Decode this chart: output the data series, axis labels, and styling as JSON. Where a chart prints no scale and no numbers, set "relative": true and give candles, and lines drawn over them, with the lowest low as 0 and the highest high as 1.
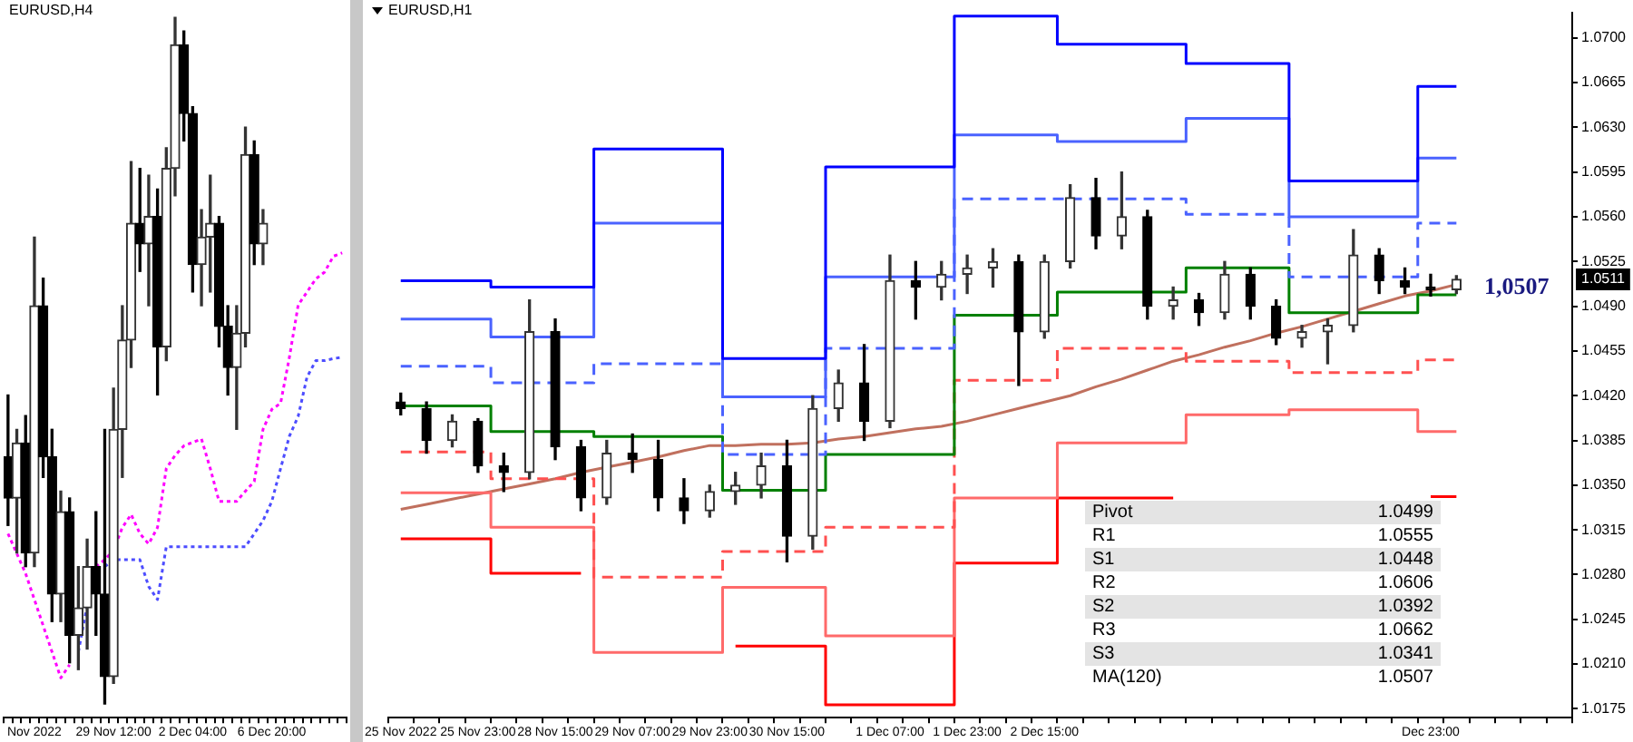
{
  "chart_data": [
    {
      "type": "candlestick",
      "title": "EURUSD,H4",
      "relative": true,
      "grid": false,
      "categories": [
        null,
        null,
        null,
        "Nov 2022",
        null,
        null,
        null,
        null,
        null,
        null,
        null,
        null,
        "29 Nov 12:00",
        null,
        null,
        null,
        null,
        null,
        null,
        null,
        null,
        "2 Dec 04:00",
        null,
        null,
        null,
        null,
        null,
        null,
        null,
        null,
        "6 Dec 20:00",
        null,
        null,
        null,
        null,
        null,
        null,
        null,
        null
      ],
      "ohlc": [
        [
          0.36,
          0.45,
          0.26,
          0.3
        ],
        [
          0.3,
          0.4,
          0.22,
          0.38
        ],
        [
          0.38,
          0.42,
          0.2,
          0.22
        ],
        [
          0.22,
          0.68,
          0.2,
          0.58
        ],
        [
          0.58,
          0.62,
          0.33,
          0.36
        ],
        [
          0.36,
          0.4,
          0.12,
          0.16
        ],
        [
          0.16,
          0.31,
          0.12,
          0.28
        ],
        [
          0.28,
          0.3,
          0.06,
          0.1
        ],
        [
          0.1,
          0.2,
          0.05,
          0.14
        ],
        [
          0.14,
          0.24,
          0.08,
          0.2
        ],
        [
          0.2,
          0.28,
          0.1,
          0.16
        ],
        [
          0.16,
          0.4,
          0.0,
          0.04
        ],
        [
          0.04,
          0.46,
          0.03,
          0.4
        ],
        [
          0.4,
          0.58,
          0.33,
          0.53
        ],
        [
          0.53,
          0.79,
          0.49,
          0.7
        ],
        [
          0.7,
          0.78,
          0.63,
          0.67
        ],
        [
          0.67,
          0.77,
          0.58,
          0.71
        ],
        [
          0.71,
          0.75,
          0.45,
          0.52
        ],
        [
          0.52,
          0.81,
          0.5,
          0.78
        ],
        [
          0.78,
          1.0,
          0.74,
          0.96
        ],
        [
          0.96,
          0.98,
          0.82,
          0.86
        ],
        [
          0.86,
          0.87,
          0.6,
          0.64
        ],
        [
          0.64,
          0.72,
          0.58,
          0.68
        ],
        [
          0.68,
          0.77,
          0.6,
          0.7
        ],
        [
          0.7,
          0.71,
          0.52,
          0.55
        ],
        [
          0.55,
          0.58,
          0.45,
          0.49
        ],
        [
          0.49,
          0.58,
          0.4,
          0.54
        ],
        [
          0.54,
          0.84,
          0.52,
          0.8
        ],
        [
          0.8,
          0.82,
          0.64,
          0.67
        ],
        [
          0.67,
          0.72,
          0.64,
          0.7
        ],
        null,
        null,
        null,
        null,
        null,
        null,
        null,
        null,
        null
      ],
      "series": [
        {
          "type": "line",
          "color": "#ff00ff",
          "line_style": "dotted",
          "values": [
            0.248,
            0.219,
            0.19,
            0.152,
            0.114,
            0.076,
            0.038,
            0.057,
            null,
            null,
            0.2,
            0.21,
            0.224,
            0.257,
            0.276,
            0.248,
            0.233,
            0.257,
            0.343,
            0.362,
            0.376,
            0.381,
            0.386,
            0.343,
            0.295,
            0.295,
            0.295,
            0.31,
            0.324,
            0.4,
            0.429,
            0.438,
            0.505,
            0.581,
            0.6,
            0.619,
            0.629,
            0.652,
            0.657
          ]
        },
        {
          "type": "line",
          "color": "#4d4dff",
          "line_style": "dotted",
          "values": [
            null,
            null,
            null,
            null,
            null,
            null,
            null,
            null,
            0.076,
            0.143,
            null,
            0.2,
            0.21,
            0.21,
            0.21,
            0.21,
            0.171,
            0.152,
            0.229,
            0.229,
            0.229,
            0.229,
            0.229,
            0.229,
            0.229,
            0.229,
            0.229,
            0.229,
            0.248,
            0.267,
            0.295,
            0.343,
            0.39,
            0.419,
            0.476,
            0.5,
            0.5,
            0.503,
            0.505
          ]
        }
      ]
    },
    {
      "type": "candlestick",
      "title": "EURUSD,H1",
      "grid": false,
      "categories": [
        "25 Nov 2022",
        null,
        null,
        "25 Nov 23:00",
        null,
        null,
        "28 Nov 15:00",
        null,
        null,
        "29 Nov 07:00",
        null,
        null,
        "29 Nov 23:00",
        null,
        null,
        "30 Nov 15:00",
        null,
        null,
        null,
        "1 Dec 07:00",
        null,
        null,
        "1 Dec 23:00",
        null,
        null,
        "2 Dec 15:00",
        null,
        null,
        null,
        null,
        null,
        null,
        null,
        null,
        null,
        null,
        null,
        null,
        null,
        null,
        "Dec 23:00",
        null,
        null,
        null,
        null,
        null
      ],
      "ohlc": [
        [
          1.0415,
          1.0422,
          1.0405,
          1.041
        ],
        [
          1.041,
          1.0415,
          1.0375,
          1.0385
        ],
        [
          1.0385,
          1.0405,
          1.038,
          1.04
        ],
        [
          1.04,
          1.0402,
          1.036,
          1.0365
        ],
        [
          1.0365,
          1.0375,
          1.0345,
          1.036
        ],
        [
          1.036,
          1.0495,
          1.0355,
          1.047
        ],
        [
          1.047,
          1.048,
          1.037,
          1.038
        ],
        [
          1.038,
          1.0385,
          1.033,
          1.034
        ],
        [
          1.034,
          1.0385,
          1.0335,
          1.0375
        ],
        [
          1.0375,
          1.039,
          1.036,
          1.037
        ],
        [
          1.037,
          1.0385,
          1.033,
          1.034
        ],
        [
          1.034,
          1.0355,
          1.032,
          1.033
        ],
        [
          1.033,
          1.035,
          1.0325,
          1.0345
        ],
        [
          1.0345,
          1.036,
          1.0335,
          1.035
        ],
        [
          1.035,
          1.0375,
          1.034,
          1.0365
        ],
        [
          1.0365,
          1.0385,
          1.029,
          1.031
        ],
        [
          1.031,
          1.042,
          1.03,
          1.041
        ],
        [
          1.041,
          1.044,
          1.04,
          1.043
        ],
        [
          1.043,
          1.046,
          1.0385,
          1.04
        ],
        [
          1.04,
          1.053,
          1.0395,
          1.051
        ],
        [
          1.051,
          1.0525,
          1.048,
          1.0505
        ],
        [
          1.0505,
          1.0525,
          1.0495,
          1.0515
        ],
        [
          1.0515,
          1.053,
          1.05,
          1.052
        ],
        [
          1.052,
          1.0535,
          1.0505,
          1.0525
        ],
        [
          1.0525,
          1.053,
          1.0428,
          1.047
        ],
        [
          1.047,
          1.053,
          1.0465,
          1.0525
        ],
        [
          1.0525,
          1.0585,
          1.052,
          1.0575
        ],
        [
          1.0575,
          1.059,
          1.0535,
          1.0545
        ],
        [
          1.0545,
          1.0595,
          1.0535,
          1.056
        ],
        [
          1.056,
          1.0565,
          1.048,
          1.049
        ],
        [
          1.049,
          1.0505,
          1.048,
          1.0495
        ],
        [
          1.0495,
          1.05,
          1.0475,
          1.0485
        ],
        [
          1.0485,
          1.0525,
          1.048,
          1.0515
        ],
        [
          1.0515,
          1.052,
          1.048,
          1.049
        ],
        [
          1.049,
          1.0495,
          1.046,
          1.0465
        ],
        [
          1.0465,
          1.0475,
          1.0458,
          1.047
        ],
        [
          1.047,
          1.048,
          1.0445,
          1.0475
        ],
        [
          1.0475,
          1.055,
          1.047,
          1.053
        ],
        [
          1.053,
          1.0535,
          1.05,
          1.051
        ],
        [
          1.051,
          1.052,
          1.05,
          1.0505
        ],
        [
          1.0505,
          1.0515,
          1.0498,
          1.0503
        ],
        [
          1.0503,
          1.0514,
          1.05,
          1.0511
        ],
        null,
        null,
        null,
        null
      ],
      "series": [
        {
          "type": "step",
          "color": "#0000ff",
          "values": [
            1.051,
            1.051,
            1.051,
            1.051,
            1.0505,
            1.0505,
            1.0505,
            1.0505,
            1.0613,
            1.0613,
            1.0613,
            1.0613,
            1.0613,
            1.0449,
            1.0449,
            1.0449,
            1.0449,
            1.0599,
            1.0599,
            1.0599,
            1.0599,
            1.0599,
            1.0717,
            1.0717,
            1.0717,
            1.0717,
            1.0695,
            1.0695,
            1.0695,
            1.0695,
            1.0695,
            1.068,
            1.068,
            1.068,
            1.068,
            1.0588,
            1.0588,
            1.0588,
            1.0588,
            1.0588,
            1.0662,
            1.0662,
            null,
            null,
            null,
            null
          ]
        },
        {
          "type": "step",
          "color": "#4a62ff",
          "values": [
            1.048,
            1.048,
            1.048,
            1.048,
            1.0466,
            1.0466,
            1.0466,
            1.0466,
            1.0555,
            1.0555,
            1.0555,
            1.0555,
            1.0555,
            1.0419,
            1.0419,
            1.0419,
            1.0419,
            1.0513,
            1.0513,
            1.0513,
            1.0513,
            1.0513,
            1.0624,
            1.0624,
            1.0624,
            1.0624,
            1.0619,
            1.0619,
            1.0619,
            1.0619,
            1.0619,
            1.0637,
            1.0637,
            1.0637,
            1.0637,
            1.056,
            1.056,
            1.056,
            1.056,
            1.056,
            1.0606,
            1.0606,
            null,
            null,
            null,
            null
          ]
        },
        {
          "type": "step",
          "color": "#4a62ff",
          "line_style": "dashed",
          "values": [
            1.0443,
            1.0443,
            1.0443,
            1.0443,
            1.043,
            1.043,
            1.043,
            1.043,
            1.0445,
            1.0445,
            1.0445,
            1.0445,
            1.0445,
            1.0374,
            1.0374,
            1.0374,
            1.0374,
            1.0457,
            1.0457,
            1.0457,
            1.0457,
            1.0457,
            1.0574,
            1.0574,
            1.0574,
            1.0574,
            1.0574,
            1.0574,
            1.0574,
            1.0574,
            1.0574,
            1.0562,
            1.0562,
            1.0562,
            1.0562,
            1.0513,
            1.0513,
            1.0513,
            1.0513,
            1.0513,
            1.0555,
            1.0555,
            null,
            null,
            null,
            null
          ]
        },
        {
          "type": "step",
          "color": "#008000",
          "values": [
            1.0412,
            1.0412,
            1.0412,
            1.0412,
            1.0392,
            1.0392,
            1.0392,
            1.0392,
            1.0388,
            1.0388,
            1.0388,
            1.0388,
            1.0388,
            1.0346,
            1.0346,
            1.0346,
            1.0346,
            1.0374,
            1.0374,
            1.0374,
            1.0374,
            1.0374,
            1.0483,
            1.0483,
            1.0483,
            1.0483,
            1.0501,
            1.0501,
            1.0501,
            1.0501,
            1.0501,
            1.052,
            1.052,
            1.052,
            1.052,
            1.0485,
            1.0485,
            1.0485,
            1.0485,
            1.0485,
            1.0499,
            1.0499,
            null,
            null,
            null,
            null
          ]
        },
        {
          "type": "step",
          "color": "#ff5050",
          "line_style": "dashed",
          "values": [
            1.0376,
            1.0376,
            1.0376,
            1.0376,
            1.0355,
            1.0355,
            1.0355,
            1.0355,
            1.0278,
            1.0278,
            1.0278,
            1.0278,
            1.0278,
            1.0298,
            1.0298,
            1.0298,
            1.0298,
            1.0317,
            1.0317,
            1.0317,
            1.0317,
            1.0317,
            1.0432,
            1.0432,
            1.0432,
            1.0432,
            1.0457,
            1.0457,
            1.0457,
            1.0457,
            1.0457,
            1.0447,
            1.0447,
            1.0447,
            1.0447,
            1.0438,
            1.0438,
            1.0438,
            1.0438,
            1.0438,
            1.0448,
            1.0448,
            null,
            null,
            null,
            null
          ]
        },
        {
          "type": "step",
          "color": "#ff6a6a",
          "values": [
            1.0344,
            1.0344,
            1.0344,
            1.0344,
            1.0317,
            1.0317,
            1.0317,
            1.0317,
            1.0219,
            1.0219,
            1.0219,
            1.0219,
            1.0219,
            1.027,
            1.027,
            1.027,
            1.027,
            1.0232,
            1.0232,
            1.0232,
            1.0232,
            1.0232,
            1.034,
            1.034,
            1.034,
            1.034,
            1.0383,
            1.0383,
            1.0383,
            1.0383,
            1.0383,
            1.0405,
            1.0405,
            1.0405,
            1.0405,
            1.0409,
            1.0409,
            1.0409,
            1.0409,
            1.0409,
            1.0392,
            1.0392,
            null,
            null,
            null,
            null
          ]
        },
        {
          "type": "step",
          "color": "#ff0000",
          "values": [
            1.0308,
            1.0308,
            1.0308,
            1.0308,
            1.0281,
            1.0281,
            1.0281,
            1.0281,
            null,
            null,
            null,
            null,
            null,
            1.0224,
            1.0224,
            1.0224,
            1.0224,
            1.0178,
            1.0178,
            1.0178,
            1.0178,
            1.0178,
            1.0289,
            1.0289,
            1.0289,
            1.0289,
            1.034,
            1.034,
            1.034,
            1.034,
            1.034,
            null,
            null,
            null,
            null,
            null,
            null,
            null,
            null,
            null,
            1.0341,
            1.0341,
            null,
            null,
            null,
            null
          ]
        },
        {
          "type": "line",
          "color": "#c0705e",
          "values": [
            1.0331,
            1.0335,
            1.0339,
            1.0343,
            1.0347,
            1.0351,
            1.0355,
            1.036,
            1.0364,
            1.0368,
            1.0372,
            1.0377,
            1.0381,
            1.0381,
            1.0382,
            1.0382,
            1.0383,
            1.0386,
            1.0388,
            1.0391,
            1.0394,
            1.0396,
            1.04,
            1.0405,
            1.041,
            1.0415,
            1.042,
            1.0427,
            1.0433,
            1.044,
            1.0447,
            1.0452,
            1.0458,
            1.0463,
            1.0469,
            1.0474,
            1.048,
            1.0486,
            1.0492,
            1.0498,
            1.0502,
            1.0507,
            null,
            null,
            null,
            null
          ]
        }
      ],
      "ylim": [
        1.0168,
        1.072
      ],
      "yticks": [
        1.0175,
        {
          "value": 1.021,
          "label": "1.0210"
        },
        1.0245,
        {
          "value": 1.028,
          "label": "1.0280"
        },
        1.0315,
        {
          "value": 1.035,
          "label": "1.0350"
        },
        1.0385,
        {
          "value": 1.042,
          "label": "1.0420"
        },
        1.0455,
        {
          "value": 1.049,
          "label": "1.0490"
        },
        1.0525,
        {
          "value": 1.056,
          "label": "1.0560"
        },
        1.0595,
        {
          "value": 1.063,
          "label": "1.0630"
        },
        1.0665,
        {
          "value": 1.07,
          "label": "1.0700"
        }
      ],
      "annotations": [
        "1,0507",
        {
          "text": "1.0511",
          "y": 1.0511
        },
        "Pivot",
        "1.0499",
        "R1",
        "1.0555",
        "S1",
        "1.0448",
        "R2",
        "1.0606",
        "S2",
        "1.0392",
        "R3",
        "1.0662",
        "S3",
        "1.0341",
        "MA(120)",
        "1.0507"
      ]
    }
  ]
}
